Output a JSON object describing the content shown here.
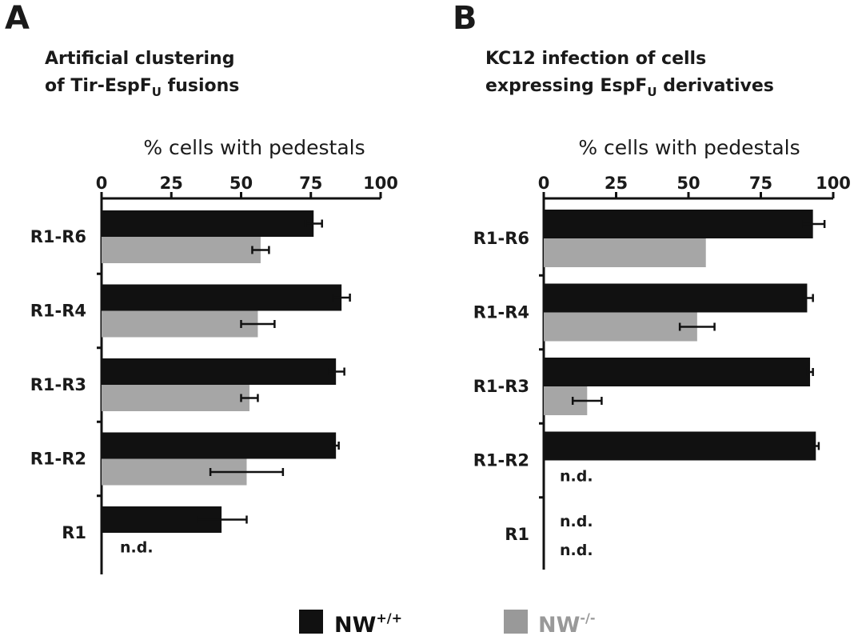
{
  "figure": {
    "panels": [
      {
        "letter": "A",
        "title_line1": "Artificial clustering",
        "title_line2_prefix": "of Tir-EspF",
        "title_line2_sub": "U",
        "title_line2_suffix": " fusions"
      },
      {
        "letter": "B",
        "title_line1": "KC12 infection of cells",
        "title_line2_prefix": "expressing EspF",
        "title_line2_sub": "U",
        "title_line2_suffix": " derivatives"
      }
    ],
    "legend": [
      {
        "base": "NW",
        "sup": "+/+",
        "color": "#111111"
      },
      {
        "base": "NW",
        "sup": "-/-",
        "color": "#999999"
      }
    ]
  },
  "chart_data": [
    {
      "type": "bar",
      "orientation": "horizontal",
      "xlabel": "% cells with pedestals",
      "xlim": [
        0,
        100
      ],
      "ticks": [
        0,
        25,
        50,
        75,
        100
      ],
      "categories": [
        "R1-R6",
        "R1-R4",
        "R1-R3",
        "R1-R2",
        "R1"
      ],
      "series": [
        {
          "name": "NW+/+",
          "color": "#111111",
          "values": [
            76,
            86,
            84,
            84,
            43
          ],
          "errors": [
            3,
            3,
            3,
            1,
            9
          ]
        },
        {
          "name": "NW-/-",
          "color": "#a6a6a6",
          "values": [
            57,
            56,
            53,
            52,
            null
          ],
          "errors": [
            3,
            6,
            3,
            13,
            null
          ]
        }
      ],
      "annotations": [
        {
          "category": "R1",
          "series": "NW-/-",
          "text": "n.d."
        }
      ]
    },
    {
      "type": "bar",
      "orientation": "horizontal",
      "xlabel": "% cells with pedestals",
      "xlim": [
        0,
        100
      ],
      "ticks": [
        0,
        25,
        50,
        75,
        100
      ],
      "categories": [
        "R1-R6",
        "R1-R4",
        "R1-R3",
        "R1-R2",
        "R1"
      ],
      "series": [
        {
          "name": "NW+/+",
          "color": "#111111",
          "values": [
            93,
            91,
            92,
            94,
            null
          ],
          "errors": [
            4,
            2,
            1,
            1,
            null
          ]
        },
        {
          "name": "NW-/-",
          "color": "#a6a6a6",
          "values": [
            56,
            53,
            15,
            null,
            null
          ],
          "errors": [
            null,
            6,
            5,
            null,
            null
          ]
        }
      ],
      "annotations": [
        {
          "category": "R1-R2",
          "series": "NW-/-",
          "text": "n.d."
        },
        {
          "category": "R1",
          "series": "NW+/+",
          "text": "n.d."
        },
        {
          "category": "R1",
          "series": "NW-/-",
          "text": "n.d."
        }
      ]
    }
  ]
}
